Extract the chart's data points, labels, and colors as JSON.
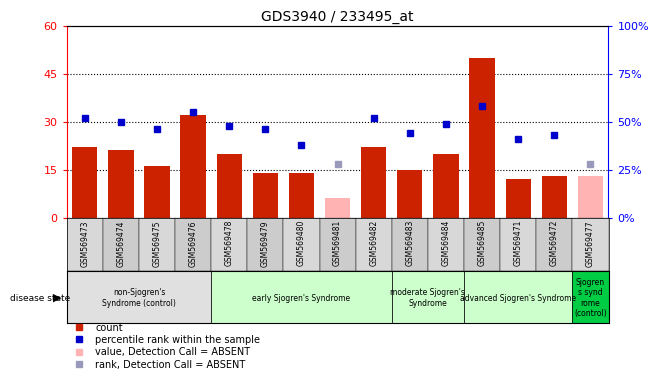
{
  "title": "GDS3940 / 233495_at",
  "samples": [
    "GSM569473",
    "GSM569474",
    "GSM569475",
    "GSM569476",
    "GSM569478",
    "GSM569479",
    "GSM569480",
    "GSM569481",
    "GSM569482",
    "GSM569483",
    "GSM569484",
    "GSM569485",
    "GSM569471",
    "GSM569472",
    "GSM569477"
  ],
  "counts": [
    22,
    21,
    16,
    32,
    20,
    14,
    14,
    null,
    22,
    15,
    20,
    50,
    12,
    13,
    null
  ],
  "counts_absent": [
    null,
    null,
    null,
    null,
    null,
    null,
    null,
    6,
    null,
    null,
    null,
    null,
    null,
    null,
    13
  ],
  "percentile_ranks": [
    52,
    50,
    46,
    55,
    48,
    46,
    38,
    null,
    52,
    44,
    49,
    58,
    41,
    43,
    null
  ],
  "percentile_ranks_absent": [
    null,
    null,
    null,
    null,
    null,
    null,
    null,
    28,
    null,
    null,
    null,
    null,
    null,
    null,
    28
  ],
  "bar_color_present": "#cc2200",
  "bar_color_absent": "#ffb3b3",
  "dot_color_present": "#0000cc",
  "dot_color_absent": "#9999bb",
  "ylim_left": [
    0,
    60
  ],
  "ylim_right": [
    0,
    100
  ],
  "yticks_left": [
    0,
    15,
    30,
    45,
    60
  ],
  "yticks_right": [
    0,
    25,
    50,
    75,
    100
  ],
  "ytick_labels_left": [
    "0",
    "15",
    "30",
    "45",
    "60"
  ],
  "ytick_labels_right": [
    "0%",
    "25%",
    "50%",
    "75%",
    "100%"
  ],
  "groups": [
    {
      "label": "non-Sjogren's\nSyndrome (control)",
      "start": 0,
      "end": 4,
      "color": "#e0e0e0"
    },
    {
      "label": "early Sjogren's Syndrome",
      "start": 4,
      "end": 9,
      "color": "#ccffcc"
    },
    {
      "label": "moderate Sjogren's\nSyndrome",
      "start": 9,
      "end": 11,
      "color": "#ccffcc"
    },
    {
      "label": "advanced Sjogren's Syndrome",
      "start": 11,
      "end": 14,
      "color": "#ccffcc"
    },
    {
      "label": "Sjogren\ns synd\nrome\n(control)",
      "start": 14,
      "end": 15,
      "color": "#00cc44"
    }
  ],
  "legend_items": [
    {
      "label": "count",
      "color": "#cc2200"
    },
    {
      "label": "percentile rank within the sample",
      "color": "#0000cc"
    },
    {
      "label": "value, Detection Call = ABSENT",
      "color": "#ffb3b3"
    },
    {
      "label": "rank, Detection Call = ABSENT",
      "color": "#9999bb"
    }
  ],
  "disease_state_label": "disease state"
}
